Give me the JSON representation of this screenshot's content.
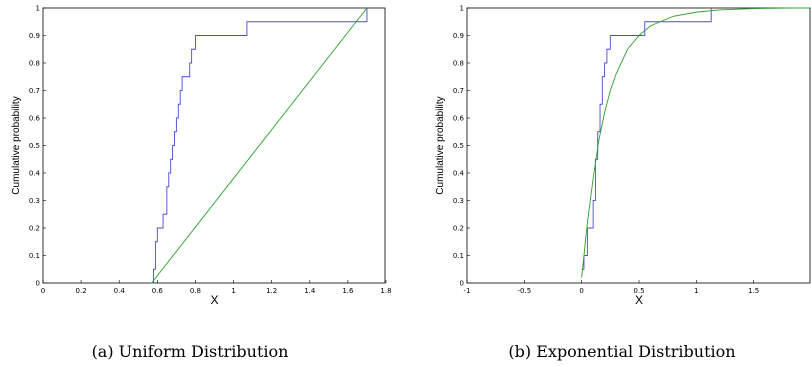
{
  "chart_data": [
    {
      "type": "line",
      "caption": "(a) Uniform Distribution",
      "xlabel": "X",
      "ylabel": "Cumulative probability",
      "xlim": [
        0,
        1.8
      ],
      "ylim": [
        0,
        1
      ],
      "xticks": [
        "0",
        "0.2",
        "0.4",
        "0.6",
        "0.8",
        "1",
        "1.2",
        "1.4",
        "1.6",
        "1.8"
      ],
      "yticks": [
        "0",
        "0.1",
        "0.2",
        "0.3",
        "0.4",
        "0.5",
        "0.6",
        "0.7",
        "0.8",
        "0.9",
        "1"
      ],
      "grid": false,
      "series": [
        {
          "kind": "step",
          "color": "#4b4bd6",
          "x": [
            0.56,
            0.58,
            0.59,
            0.6,
            0.63,
            0.65,
            0.66,
            0.67,
            0.68,
            0.69,
            0.7,
            0.71,
            0.72,
            0.73,
            0.74,
            0.77,
            0.78,
            0.8,
            0.83,
            1.07,
            1.7
          ],
          "y": [
            0,
            0.05,
            0.15,
            0.2,
            0.25,
            0.35,
            0.4,
            0.45,
            0.5,
            0.55,
            0.6,
            0.65,
            0.7,
            0.75,
            0.75,
            0.8,
            0.85,
            0.9,
            0.9,
            0.95,
            1
          ]
        },
        {
          "kind": "line",
          "color": "#2ca02c",
          "x": [
            0.57,
            1.7
          ],
          "y": [
            0,
            1
          ]
        }
      ]
    },
    {
      "type": "line",
      "caption": "(b) Exponential Distribution",
      "xlabel": "X",
      "ylabel": "Cumulative probability",
      "xlim": [
        -1,
        2
      ],
      "ylim": [
        0,
        1
      ],
      "xticks": [
        "-1",
        "-0.5",
        "0",
        "0.5",
        "1",
        "1.5"
      ],
      "yticks": [
        "0",
        "0.1",
        "0.2",
        "0.3",
        "0.4",
        "0.5",
        "0.6",
        "0.7",
        "0.8",
        "0.9",
        "1"
      ],
      "grid": false,
      "series": [
        {
          "kind": "step",
          "color": "#4b4bd6",
          "x": [
            0,
            0.02,
            0.05,
            0.1,
            0.12,
            0.14,
            0.16,
            0.18,
            0.2,
            0.22,
            0.25,
            0.5,
            0.55,
            1.13
          ],
          "y": [
            0.05,
            0.1,
            0.2,
            0.3,
            0.45,
            0.55,
            0.65,
            0.75,
            0.8,
            0.85,
            0.9,
            0.9,
            0.95,
            1
          ]
        },
        {
          "kind": "curve",
          "color": "#2ca02c",
          "x": [
            0,
            0.05,
            0.1,
            0.15,
            0.2,
            0.25,
            0.3,
            0.4,
            0.5,
            0.6,
            0.8,
            1.0,
            1.2,
            1.5,
            1.8,
            2.0
          ],
          "y": [
            0.02,
            0.22,
            0.38,
            0.52,
            0.62,
            0.7,
            0.76,
            0.85,
            0.9,
            0.935,
            0.97,
            0.985,
            0.993,
            0.998,
            1,
            1
          ]
        }
      ]
    }
  ]
}
